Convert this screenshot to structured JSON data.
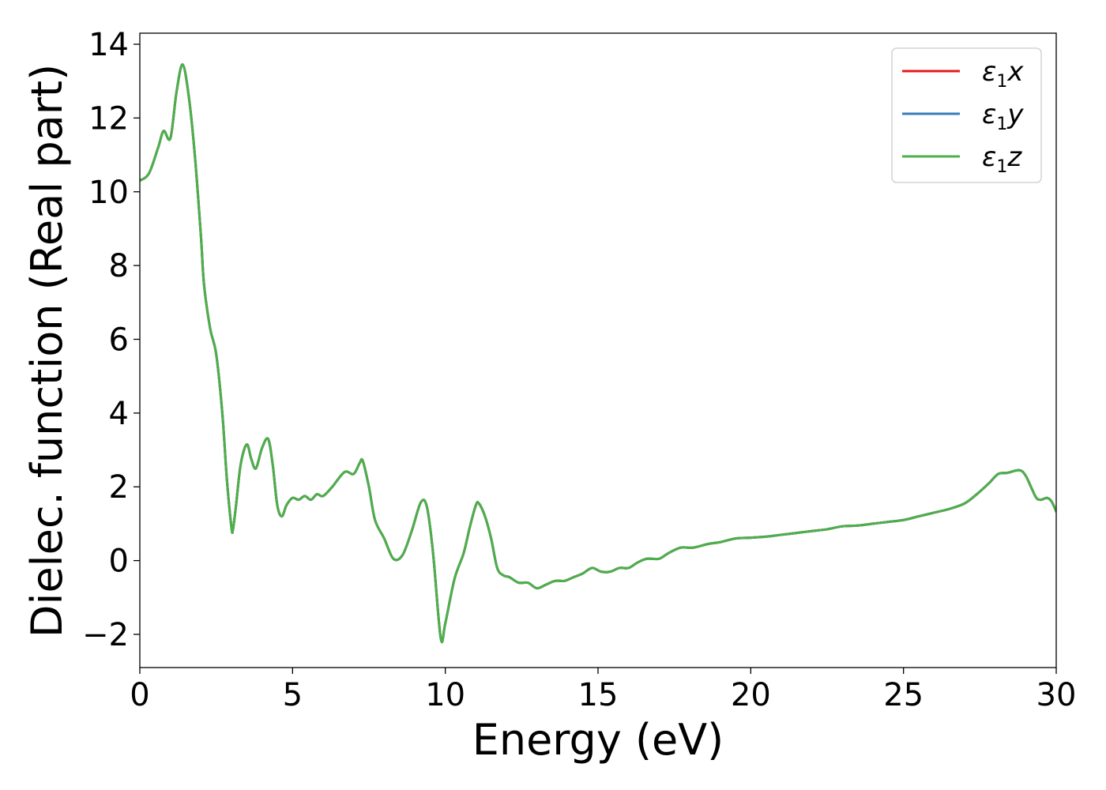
{
  "chart_data": {
    "type": "line",
    "title": "",
    "xlabel": "Energy (eV)",
    "ylabel": "Dielec. function (Real part)",
    "xlim": [
      0,
      30
    ],
    "ylim": [
      -2.9,
      14.3
    ],
    "xticks": [
      0,
      5,
      10,
      15,
      20,
      25,
      30
    ],
    "xtick_labels": [
      "0",
      "5",
      "10",
      "15",
      "20",
      "25",
      "30"
    ],
    "yticks": [
      -2,
      0,
      2,
      4,
      6,
      8,
      10,
      12,
      14
    ],
    "ytick_labels": [
      "−2",
      "0",
      "2",
      "4",
      "6",
      "8",
      "10",
      "12",
      "14"
    ],
    "grid": false,
    "legend_position": "top-right",
    "x": [
      0.0,
      0.3,
      0.6,
      0.78,
      1.0,
      1.2,
      1.4,
      1.6,
      1.8,
      2.0,
      2.1,
      2.3,
      2.5,
      2.7,
      2.85,
      3.0,
      3.05,
      3.15,
      3.3,
      3.5,
      3.65,
      3.8,
      4.0,
      4.2,
      4.35,
      4.5,
      4.65,
      4.8,
      5.0,
      5.2,
      5.4,
      5.6,
      5.8,
      6.0,
      6.3,
      6.7,
      7.0,
      7.2,
      7.3,
      7.5,
      7.7,
      8.0,
      8.3,
      8.6,
      8.9,
      9.2,
      9.4,
      9.6,
      9.85,
      10.0,
      10.3,
      10.6,
      10.8,
      11.0,
      11.1,
      11.3,
      11.5,
      11.7,
      11.9,
      12.1,
      12.4,
      12.7,
      13.0,
      13.3,
      13.6,
      13.9,
      14.2,
      14.5,
      14.8,
      15.1,
      15.4,
      15.7,
      16.0,
      16.3,
      16.6,
      17.0,
      17.3,
      17.7,
      18.1,
      18.6,
      19.0,
      19.5,
      20.0,
      20.5,
      21.0,
      21.5,
      22.0,
      22.5,
      23.0,
      23.5,
      24.0,
      24.5,
      25.0,
      25.5,
      26.0,
      26.5,
      27.0,
      27.4,
      27.8,
      28.1,
      28.4,
      28.8,
      29.0,
      29.2,
      29.35,
      29.5,
      29.7,
      29.85,
      30.0
    ],
    "series": [
      {
        "name": "ε₁x",
        "name_base": "ε",
        "name_sub": "1",
        "name_suffix": "x",
        "color": "#e41a1c",
        "y": [
          10.3,
          10.5,
          11.2,
          11.65,
          11.45,
          12.7,
          13.45,
          12.6,
          11.0,
          8.8,
          7.5,
          6.3,
          5.6,
          4.0,
          2.2,
          0.9,
          0.85,
          1.5,
          2.6,
          3.15,
          2.75,
          2.5,
          3.05,
          3.3,
          2.6,
          1.5,
          1.2,
          1.5,
          1.7,
          1.65,
          1.75,
          1.65,
          1.8,
          1.75,
          2.0,
          2.4,
          2.35,
          2.65,
          2.7,
          2.0,
          1.1,
          0.6,
          0.05,
          0.15,
          0.8,
          1.58,
          1.45,
          0.2,
          -2.1,
          -1.7,
          -0.5,
          0.2,
          0.9,
          1.5,
          1.55,
          1.2,
          0.6,
          -0.2,
          -0.4,
          -0.45,
          -0.6,
          -0.6,
          -0.75,
          -0.65,
          -0.55,
          -0.55,
          -0.45,
          -0.35,
          -0.2,
          -0.3,
          -0.3,
          -0.2,
          -0.2,
          -0.05,
          0.05,
          0.05,
          0.2,
          0.35,
          0.35,
          0.45,
          0.5,
          0.6,
          0.62,
          0.65,
          0.7,
          0.75,
          0.8,
          0.85,
          0.93,
          0.95,
          1.0,
          1.05,
          1.1,
          1.2,
          1.3,
          1.4,
          1.55,
          1.8,
          2.1,
          2.35,
          2.38,
          2.45,
          2.3,
          1.95,
          1.7,
          1.65,
          1.7,
          1.6,
          1.33
        ]
      },
      {
        "name": "ε₁y",
        "name_base": "ε",
        "name_sub": "1",
        "name_suffix": "y",
        "color": "#377eb8",
        "y": [
          10.3,
          10.5,
          11.2,
          11.65,
          11.45,
          12.7,
          13.45,
          12.6,
          11.0,
          8.8,
          7.5,
          6.3,
          5.6,
          4.0,
          2.2,
          0.9,
          0.85,
          1.5,
          2.6,
          3.15,
          2.75,
          2.5,
          3.05,
          3.3,
          2.6,
          1.5,
          1.2,
          1.5,
          1.7,
          1.65,
          1.75,
          1.65,
          1.8,
          1.75,
          2.0,
          2.4,
          2.35,
          2.65,
          2.7,
          2.0,
          1.1,
          0.6,
          0.05,
          0.15,
          0.8,
          1.58,
          1.45,
          0.2,
          -2.1,
          -1.7,
          -0.5,
          0.2,
          0.9,
          1.5,
          1.55,
          1.2,
          0.6,
          -0.2,
          -0.4,
          -0.45,
          -0.6,
          -0.6,
          -0.75,
          -0.65,
          -0.55,
          -0.55,
          -0.45,
          -0.35,
          -0.2,
          -0.3,
          -0.3,
          -0.2,
          -0.2,
          -0.05,
          0.05,
          0.05,
          0.2,
          0.35,
          0.35,
          0.45,
          0.5,
          0.6,
          0.62,
          0.65,
          0.7,
          0.75,
          0.8,
          0.85,
          0.93,
          0.95,
          1.0,
          1.05,
          1.1,
          1.2,
          1.3,
          1.4,
          1.55,
          1.8,
          2.1,
          2.35,
          2.38,
          2.45,
          2.3,
          1.95,
          1.7,
          1.65,
          1.7,
          1.6,
          1.33
        ]
      },
      {
        "name": "ε₁z",
        "name_base": "ε",
        "name_sub": "1",
        "name_suffix": "z",
        "color": "#4daf4a",
        "y": [
          10.3,
          10.5,
          11.2,
          11.65,
          11.45,
          12.7,
          13.45,
          12.6,
          11.0,
          8.8,
          7.5,
          6.3,
          5.6,
          4.0,
          2.2,
          0.9,
          0.85,
          1.5,
          2.6,
          3.15,
          2.75,
          2.5,
          3.05,
          3.3,
          2.6,
          1.5,
          1.2,
          1.5,
          1.7,
          1.65,
          1.75,
          1.65,
          1.8,
          1.75,
          2.0,
          2.4,
          2.35,
          2.65,
          2.7,
          2.0,
          1.1,
          0.6,
          0.05,
          0.15,
          0.8,
          1.58,
          1.45,
          0.2,
          -2.1,
          -1.7,
          -0.5,
          0.2,
          0.9,
          1.5,
          1.55,
          1.2,
          0.6,
          -0.2,
          -0.4,
          -0.45,
          -0.6,
          -0.6,
          -0.75,
          -0.65,
          -0.55,
          -0.55,
          -0.45,
          -0.35,
          -0.2,
          -0.3,
          -0.3,
          -0.2,
          -0.2,
          -0.05,
          0.05,
          0.05,
          0.2,
          0.35,
          0.35,
          0.45,
          0.5,
          0.6,
          0.62,
          0.65,
          0.7,
          0.75,
          0.8,
          0.85,
          0.93,
          0.95,
          1.0,
          1.05,
          1.1,
          1.2,
          1.3,
          1.4,
          1.55,
          1.8,
          2.1,
          2.35,
          2.38,
          2.45,
          2.3,
          1.95,
          1.7,
          1.65,
          1.7,
          1.6,
          1.33
        ]
      }
    ]
  }
}
